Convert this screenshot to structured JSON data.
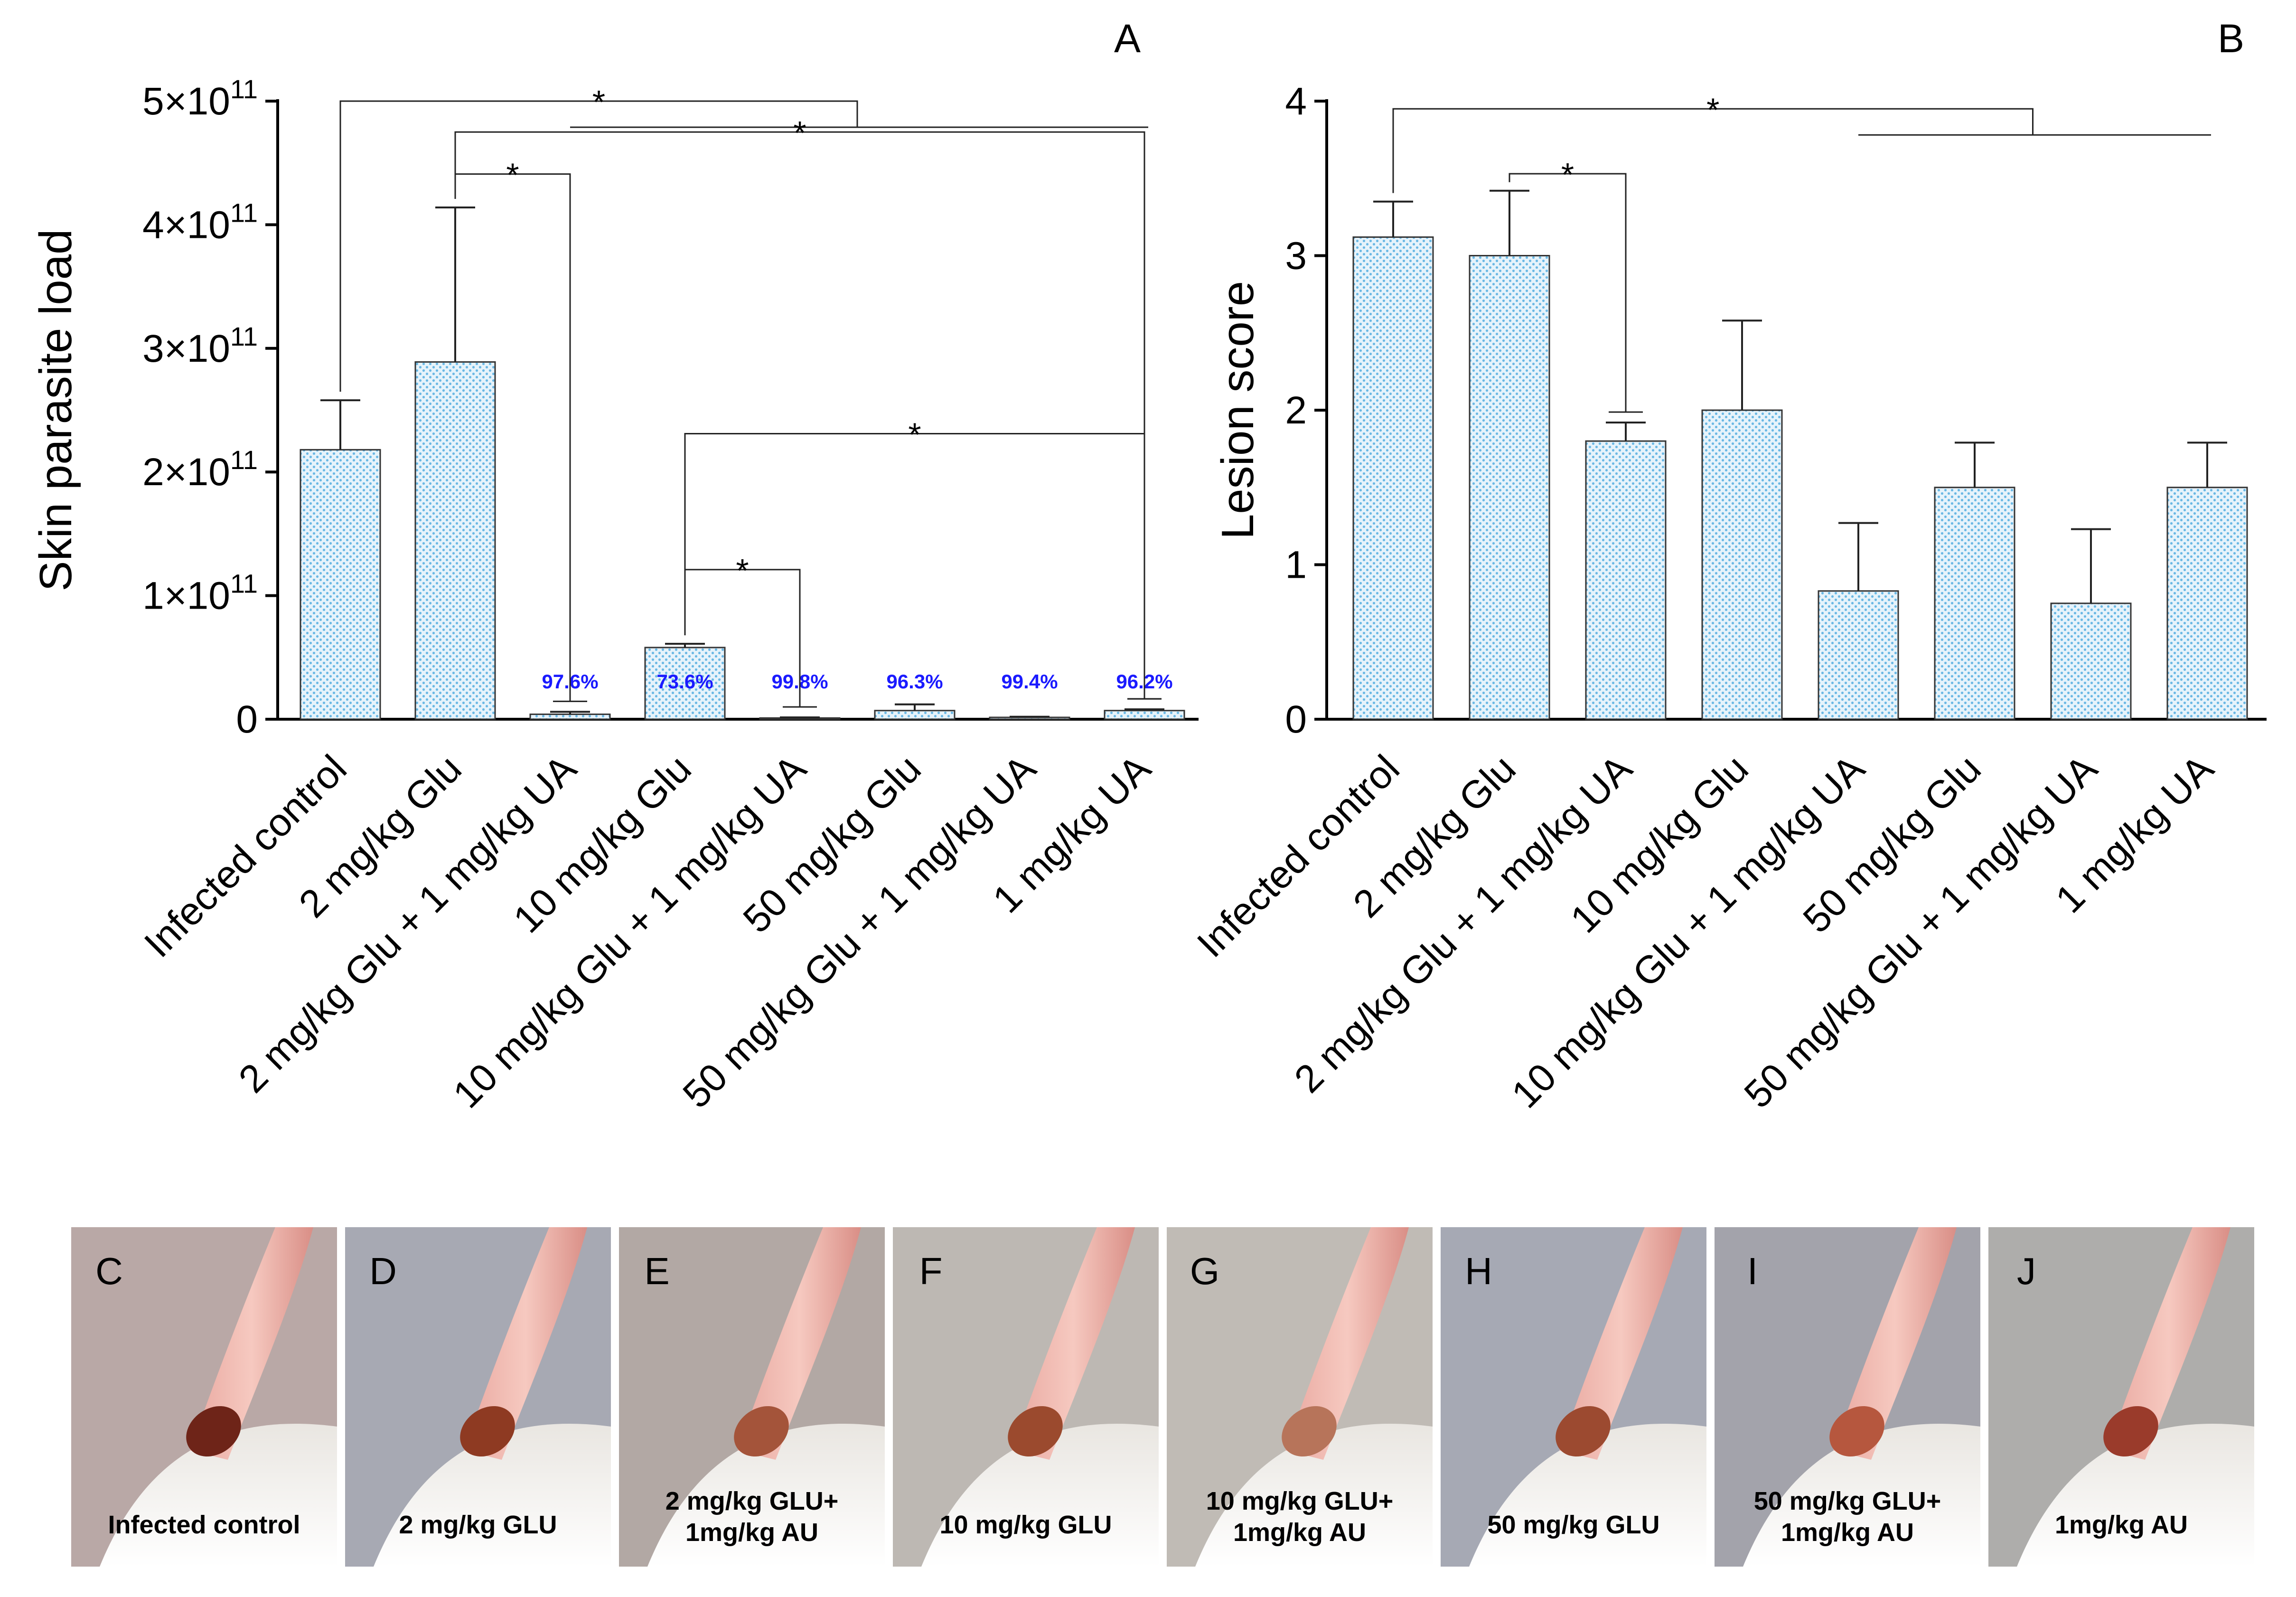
{
  "chart_data": [
    {
      "panel": "A",
      "type": "bar",
      "ylabel": "Skin parasite load",
      "y_tick_labels": [
        {
          "value": 0,
          "base": "0",
          "exp": ""
        },
        {
          "value": 100000000000,
          "base": "1×10",
          "exp": "11"
        },
        {
          "value": 200000000000,
          "base": "2×10",
          "exp": "11"
        },
        {
          "value": 300000000000,
          "base": "3×10",
          "exp": "11"
        },
        {
          "value": 400000000000,
          "base": "4×10",
          "exp": "11"
        },
        {
          "value": 500000000000,
          "base": "5×10",
          "exp": "11"
        }
      ],
      "ylim": [
        0,
        500000000000
      ],
      "categories": [
        "Infected control",
        "2 mg/kg Glu",
        "2 mg/kg Glu + 1 mg/kg UA",
        "10 mg/kg Glu",
        "10 mg/kg Glu + 1 mg/kg UA",
        "50 mg/kg Glu",
        "50 mg/kg Glu + 1 mg/kg UA",
        "1 mg/kg UA"
      ],
      "values": [
        218000000000,
        289000000000,
        4000000000,
        58000000000,
        1000000000,
        7000000000,
        1500000000,
        7000000000
      ],
      "errors": [
        40000000000,
        125000000000,
        2000000000,
        3000000000,
        500000000,
        5000000000,
        500000000,
        1000000000
      ],
      "percent_labels": [
        "",
        "",
        "97.6%",
        "73.6%",
        "99.8%",
        "96.3%",
        "99.4%",
        "96.2%"
      ],
      "significance": [
        {
          "from": 0,
          "to_range": [
            2,
            7
          ],
          "level": 500000000000,
          "label": "*"
        },
        {
          "from": 1,
          "to": 7,
          "level": 475000000000,
          "label": "*"
        },
        {
          "from": 1,
          "to": 2,
          "level": 441000000000,
          "label": "*"
        },
        {
          "from": 3,
          "to": 7,
          "level": 231000000000,
          "label": "*"
        },
        {
          "from": 3,
          "to": 4,
          "level": 121000000000,
          "label": "*"
        }
      ]
    },
    {
      "panel": "B",
      "type": "bar",
      "ylabel": "Lesion score",
      "y_ticks": [
        0,
        1,
        2,
        3,
        4
      ],
      "ylim": [
        0,
        4
      ],
      "categories": [
        "Infected control",
        "2 mg/kg Glu",
        "2 mg/kg Glu + 1 mg/kg UA",
        "10 mg/kg Glu",
        "10 mg/kg Glu + 1 mg/kg UA",
        "50 mg/kg Glu",
        "50 mg/kg Glu + 1 mg/kg UA",
        "1 mg/kg UA"
      ],
      "values": [
        3.12,
        3.0,
        1.8,
        2.0,
        0.83,
        1.5,
        0.75,
        1.5
      ],
      "errors": [
        0.23,
        0.42,
        0.12,
        0.58,
        0.44,
        0.29,
        0.48,
        0.29
      ],
      "significance": [
        {
          "from": 0,
          "to_range": [
            4,
            7
          ],
          "level": 3.95,
          "label": "*"
        },
        {
          "from": 1,
          "to": 2,
          "level": 3.53,
          "label": "*"
        }
      ]
    }
  ],
  "photos": [
    {
      "letter": "C",
      "caption": [
        "Infected control"
      ],
      "skin": "#b9a8a6",
      "lesion": "#6e2418"
    },
    {
      "letter": "D",
      "caption": [
        "2 mg/kg GLU"
      ],
      "skin": "#a7a9b3",
      "lesion": "#8e3a22"
    },
    {
      "letter": "E",
      "caption": [
        "2 mg/kg GLU+",
        "1mg/kg AU"
      ],
      "skin": "#b2a8a4",
      "lesion": "#a4543a"
    },
    {
      "letter": "F",
      "caption": [
        "10 mg/kg GLU"
      ],
      "skin": "#bdb8b3",
      "lesion": "#9b4a2e"
    },
    {
      "letter": "G",
      "caption": [
        "10 mg/kg GLU+",
        "1mg/kg AU"
      ],
      "skin": "#c0bbb5",
      "lesion": "#b7745a"
    },
    {
      "letter": "H",
      "caption": [
        "50 mg/kg GLU"
      ],
      "skin": "#a6a9b4",
      "lesion": "#9c4a30"
    },
    {
      "letter": "I",
      "caption": [
        "50 mg/kg GLU+",
        "1mg/kg AU"
      ],
      "skin": "#a3a3ab",
      "lesion": "#b6573e"
    },
    {
      "letter": "J",
      "caption": [
        "1mg/kg AU"
      ],
      "skin": "#aeadab",
      "lesion": "#9a3b2b"
    }
  ],
  "colors": {
    "bar_fill": "#e6f3fb",
    "bar_dots": "#6ab8e4",
    "axis": "#000000",
    "percent": "#1a1aff"
  }
}
